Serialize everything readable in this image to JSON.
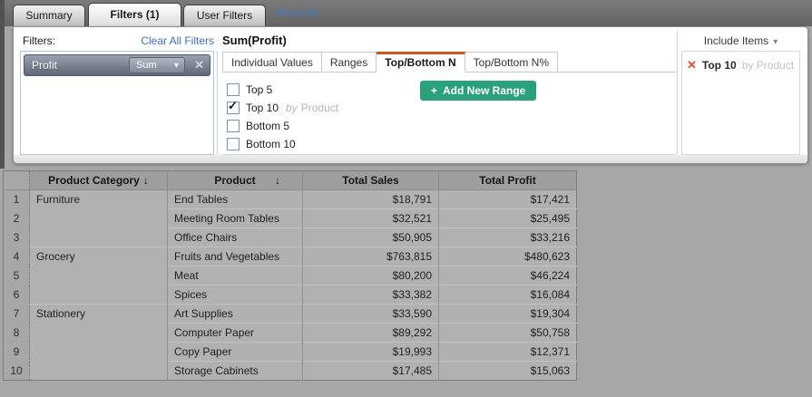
{
  "top_tabs": [
    {
      "label": "Summary",
      "active": false
    },
    {
      "label": "Filters (1)",
      "active": true
    },
    {
      "label": "User Filters",
      "active": false
    }
  ],
  "reset_all_label": "Reset All",
  "panel": {
    "filters_label": "Filters:",
    "clear_all_label": "Clear All Filters",
    "chip": {
      "name": "Profit",
      "agg": "Sum"
    },
    "detail_title": "Sum(Profit)",
    "subtabs": [
      "Individual Values",
      "Ranges",
      "Top/Bottom N",
      "Top/Bottom N%"
    ],
    "active_subtab_index": 2,
    "options": [
      {
        "label": "Top 5",
        "checked": false
      },
      {
        "label": "Top 10",
        "checked": true,
        "by_prefix": "by",
        "by_value": "Product"
      },
      {
        "label": "Bottom 5",
        "checked": false
      },
      {
        "label": "Bottom 10",
        "checked": false
      }
    ],
    "add_range": {
      "plus": "+",
      "label": "Add New Range"
    },
    "include_items": {
      "label": "Include Items",
      "caret": "▾"
    },
    "selected_item": {
      "remove": "✕",
      "label": "Top 10",
      "by_prefix": "by",
      "by_value": "Product"
    }
  },
  "icons": {
    "checkbox_check": "✓",
    "sort_down": "↓",
    "caret_down": "▾",
    "close": "✕"
  },
  "colors": {
    "accent_orange": "#cb5a1f",
    "button_green": "#2aa17c",
    "link_blue": "#3b6fc4",
    "remove_red": "#dd4f34"
  },
  "table": {
    "headers": [
      {
        "label": "Product Category",
        "sort": "↓"
      },
      {
        "label": "Product",
        "sort": "↓"
      },
      {
        "label": "Total Sales"
      },
      {
        "label": "Total Profit"
      }
    ],
    "rows": [
      {
        "num": "1",
        "category": "Furniture",
        "category_rowspan": 3,
        "product": "End Tables",
        "total_sales": "$18,791",
        "total_profit": "$17,421"
      },
      {
        "num": "2",
        "product": "Meeting Room Tables",
        "total_sales": "$32,521",
        "total_profit": "$25,495"
      },
      {
        "num": "3",
        "product": "Office Chairs",
        "total_sales": "$50,905",
        "total_profit": "$33,216"
      },
      {
        "num": "4",
        "category": "Grocery",
        "category_rowspan": 3,
        "product": "Fruits and Vegetables",
        "total_sales": "$763,815",
        "total_profit": "$480,623"
      },
      {
        "num": "5",
        "product": "Meat",
        "total_sales": "$80,200",
        "total_profit": "$46,224"
      },
      {
        "num": "6",
        "product": "Spices",
        "total_sales": "$33,382",
        "total_profit": "$16,084"
      },
      {
        "num": "7",
        "category": "Stationery",
        "category_rowspan": 4,
        "product": "Art Supplies",
        "total_sales": "$33,590",
        "total_profit": "$19,304"
      },
      {
        "num": "8",
        "product": "Computer Paper",
        "total_sales": "$89,292",
        "total_profit": "$50,758"
      },
      {
        "num": "9",
        "product": "Copy Paper",
        "total_sales": "$19,993",
        "total_profit": "$12,371"
      },
      {
        "num": "10",
        "product": "Storage Cabinets",
        "total_sales": "$17,485",
        "total_profit": "$15,063"
      }
    ]
  }
}
